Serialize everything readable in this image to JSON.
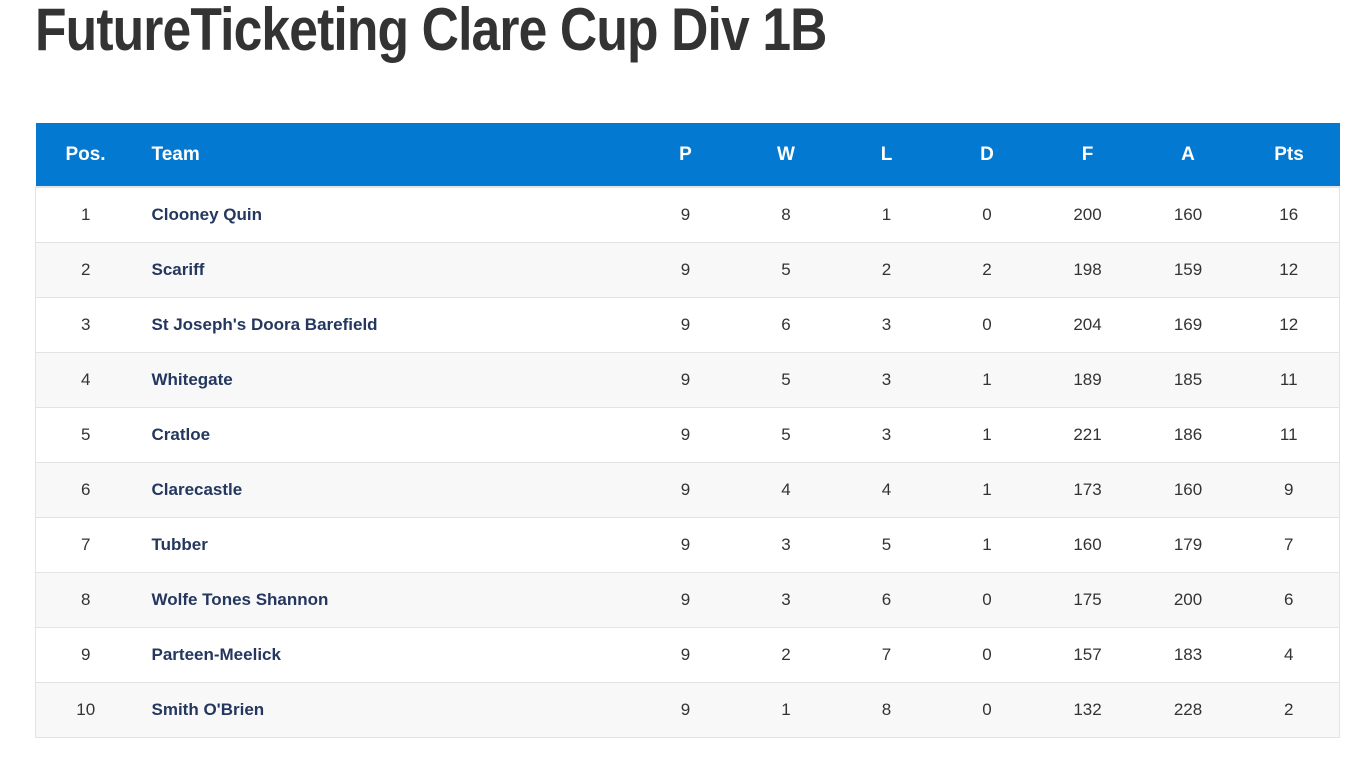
{
  "title": "FutureTicketing Clare Cup Div 1B",
  "colors": {
    "header_bg": "#0479d1",
    "header_text": "#ffffff",
    "team_link": "#24375f",
    "row_alt": "#f8f8f8"
  },
  "table": {
    "columns": [
      "Pos.",
      "Team",
      "P",
      "W",
      "L",
      "D",
      "F",
      "A",
      "Pts"
    ],
    "rows": [
      {
        "pos": "1",
        "team": "Clooney Quin",
        "p": "9",
        "w": "8",
        "l": "1",
        "d": "0",
        "f": "200",
        "a": "160",
        "pts": "16"
      },
      {
        "pos": "2",
        "team": "Scariff",
        "p": "9",
        "w": "5",
        "l": "2",
        "d": "2",
        "f": "198",
        "a": "159",
        "pts": "12"
      },
      {
        "pos": "3",
        "team": "St Joseph's Doora Barefield",
        "p": "9",
        "w": "6",
        "l": "3",
        "d": "0",
        "f": "204",
        "a": "169",
        "pts": "12"
      },
      {
        "pos": "4",
        "team": "Whitegate",
        "p": "9",
        "w": "5",
        "l": "3",
        "d": "1",
        "f": "189",
        "a": "185",
        "pts": "11"
      },
      {
        "pos": "5",
        "team": "Cratloe",
        "p": "9",
        "w": "5",
        "l": "3",
        "d": "1",
        "f": "221",
        "a": "186",
        "pts": "11"
      },
      {
        "pos": "6",
        "team": "Clarecastle",
        "p": "9",
        "w": "4",
        "l": "4",
        "d": "1",
        "f": "173",
        "a": "160",
        "pts": "9"
      },
      {
        "pos": "7",
        "team": "Tubber",
        "p": "9",
        "w": "3",
        "l": "5",
        "d": "1",
        "f": "160",
        "a": "179",
        "pts": "7"
      },
      {
        "pos": "8",
        "team": "Wolfe Tones Shannon",
        "p": "9",
        "w": "3",
        "l": "6",
        "d": "0",
        "f": "175",
        "a": "200",
        "pts": "6"
      },
      {
        "pos": "9",
        "team": "Parteen-Meelick",
        "p": "9",
        "w": "2",
        "l": "7",
        "d": "0",
        "f": "157",
        "a": "183",
        "pts": "4"
      },
      {
        "pos": "10",
        "team": "Smith O'Brien",
        "p": "9",
        "w": "1",
        "l": "8",
        "d": "0",
        "f": "132",
        "a": "228",
        "pts": "2"
      }
    ]
  }
}
